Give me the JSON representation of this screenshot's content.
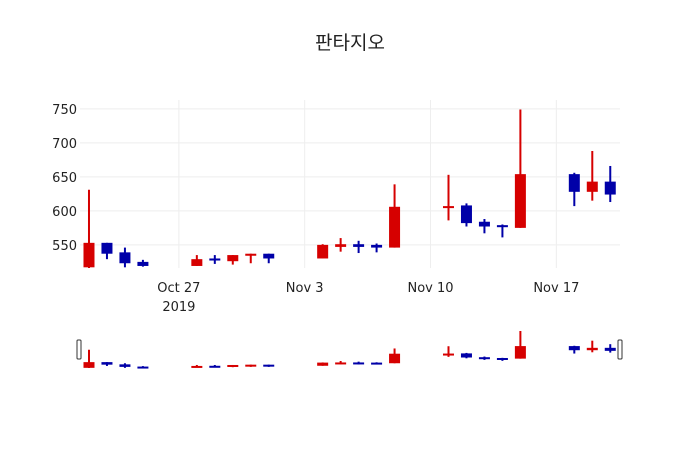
{
  "chart_data": {
    "type": "candlestick",
    "title": "판타지오",
    "xlabel": "",
    "ylabel": "",
    "ylim": [
      516,
      763
    ],
    "xrange": [
      "2019-10-21T12:00",
      "2019-11-20T13:00"
    ],
    "yticks": [
      550,
      600,
      650,
      700,
      750
    ],
    "xticks": [
      {
        "date": "2019-10-27",
        "label": "Oct 27",
        "sublabel": "2019"
      },
      {
        "date": "2019-11-03",
        "label": "Nov 3"
      },
      {
        "date": "2019-11-10",
        "label": "Nov 10"
      },
      {
        "date": "2019-11-17",
        "label": "Nov 17"
      }
    ],
    "grid": true,
    "rangeslider": true,
    "colors": {
      "increasing": "#d60000",
      "decreasing": "#0000a8"
    },
    "candles": [
      {
        "date": "2019-10-22",
        "open": 517,
        "high": 631,
        "low": 516,
        "close": 553
      },
      {
        "date": "2019-10-23",
        "open": 553,
        "high": 553,
        "low": 529,
        "close": 537
      },
      {
        "date": "2019-10-24",
        "open": 539,
        "high": 546,
        "low": 517,
        "close": 523
      },
      {
        "date": "2019-10-25",
        "open": 525,
        "high": 528,
        "low": 518,
        "close": 519
      },
      {
        "date": "2019-10-28",
        "open": 519,
        "high": 535,
        "low": 519,
        "close": 529
      },
      {
        "date": "2019-10-29",
        "open": 530,
        "high": 535,
        "low": 522,
        "close": 527
      },
      {
        "date": "2019-10-30",
        "open": 526,
        "high": 535,
        "low": 521,
        "close": 535
      },
      {
        "date": "2019-10-31",
        "open": 534,
        "high": 537,
        "low": 523,
        "close": 537
      },
      {
        "date": "2019-11-01",
        "open": 537,
        "high": 537,
        "low": 523,
        "close": 530
      },
      {
        "date": "2019-11-04",
        "open": 530,
        "high": 551,
        "low": 530,
        "close": 550
      },
      {
        "date": "2019-11-05",
        "open": 547,
        "high": 560,
        "low": 540,
        "close": 551
      },
      {
        "date": "2019-11-06",
        "open": 551,
        "high": 556,
        "low": 538,
        "close": 547
      },
      {
        "date": "2019-11-07",
        "open": 550,
        "high": 552,
        "low": 539,
        "close": 546
      },
      {
        "date": "2019-11-08",
        "open": 546,
        "high": 639,
        "low": 546,
        "close": 606
      },
      {
        "date": "2019-11-11",
        "open": 605,
        "high": 653,
        "low": 586,
        "close": 607
      },
      {
        "date": "2019-11-12",
        "open": 608,
        "high": 611,
        "low": 577,
        "close": 582
      },
      {
        "date": "2019-11-13",
        "open": 584,
        "high": 588,
        "low": 567,
        "close": 577
      },
      {
        "date": "2019-11-14",
        "open": 579,
        "high": 580,
        "low": 561,
        "close": 576
      },
      {
        "date": "2019-11-15",
        "open": 575,
        "high": 749,
        "low": 575,
        "close": 654
      },
      {
        "date": "2019-11-18",
        "open": 654,
        "high": 656,
        "low": 607,
        "close": 628
      },
      {
        "date": "2019-11-19",
        "open": 628,
        "high": 688,
        "low": 615,
        "close": 643
      },
      {
        "date": "2019-11-20",
        "open": 643,
        "high": 666,
        "low": 613,
        "close": 624
      }
    ]
  }
}
